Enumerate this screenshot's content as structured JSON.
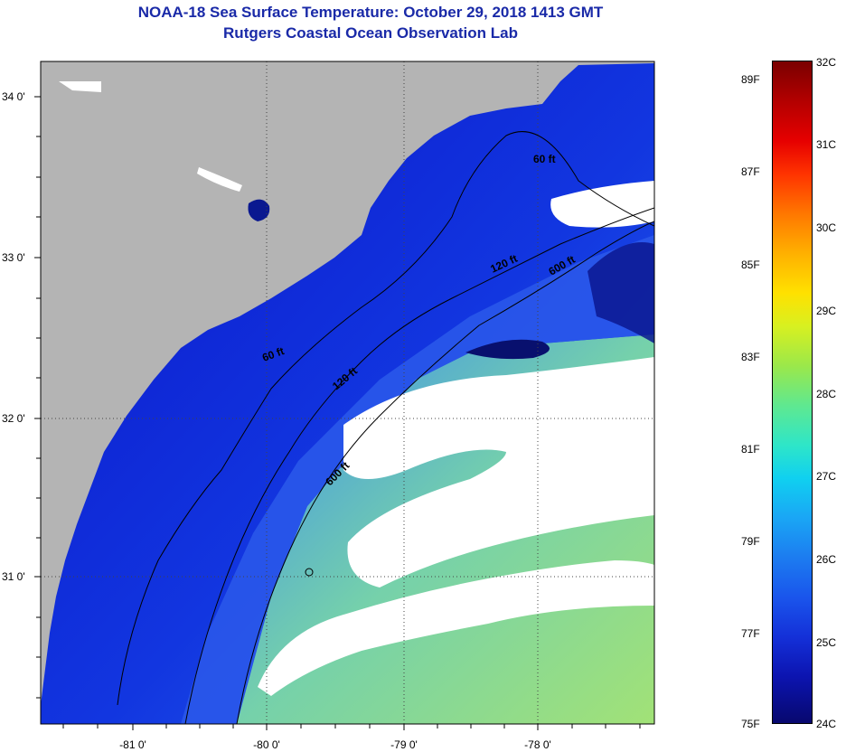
{
  "header": {
    "title": "NOAA-18 Sea Surface Temperature:  October 29, 2018 1413 GMT",
    "subtitle": "Rutgers Coastal Ocean Observation Lab"
  },
  "map": {
    "lat_ticks": [
      "34 0'",
      "33 0'",
      "32 0'",
      "31 0'"
    ],
    "lon_ticks": [
      "-81 0'",
      "-80 0'",
      "-79 0'",
      "-78 0'"
    ],
    "contours": {
      "c60": "60 ft",
      "c60b": "60 ft",
      "c120": "120 ft",
      "c120b": "120 ft",
      "c600": "600 ft",
      "c600b": "600 ft"
    },
    "colors": {
      "land": "#b4b4b4",
      "cloud": "#ffffff",
      "deep_cold": "#0a14c8",
      "warm": "#a6e86a"
    }
  },
  "colorbar": {
    "fahrenheit": [
      "89F",
      "87F",
      "85F",
      "83F",
      "81F",
      "79F",
      "77F",
      "75F"
    ],
    "celsius": [
      "32C",
      "31C",
      "30C",
      "29C",
      "28C",
      "27C",
      "26C",
      "25C",
      "24C"
    ]
  }
}
